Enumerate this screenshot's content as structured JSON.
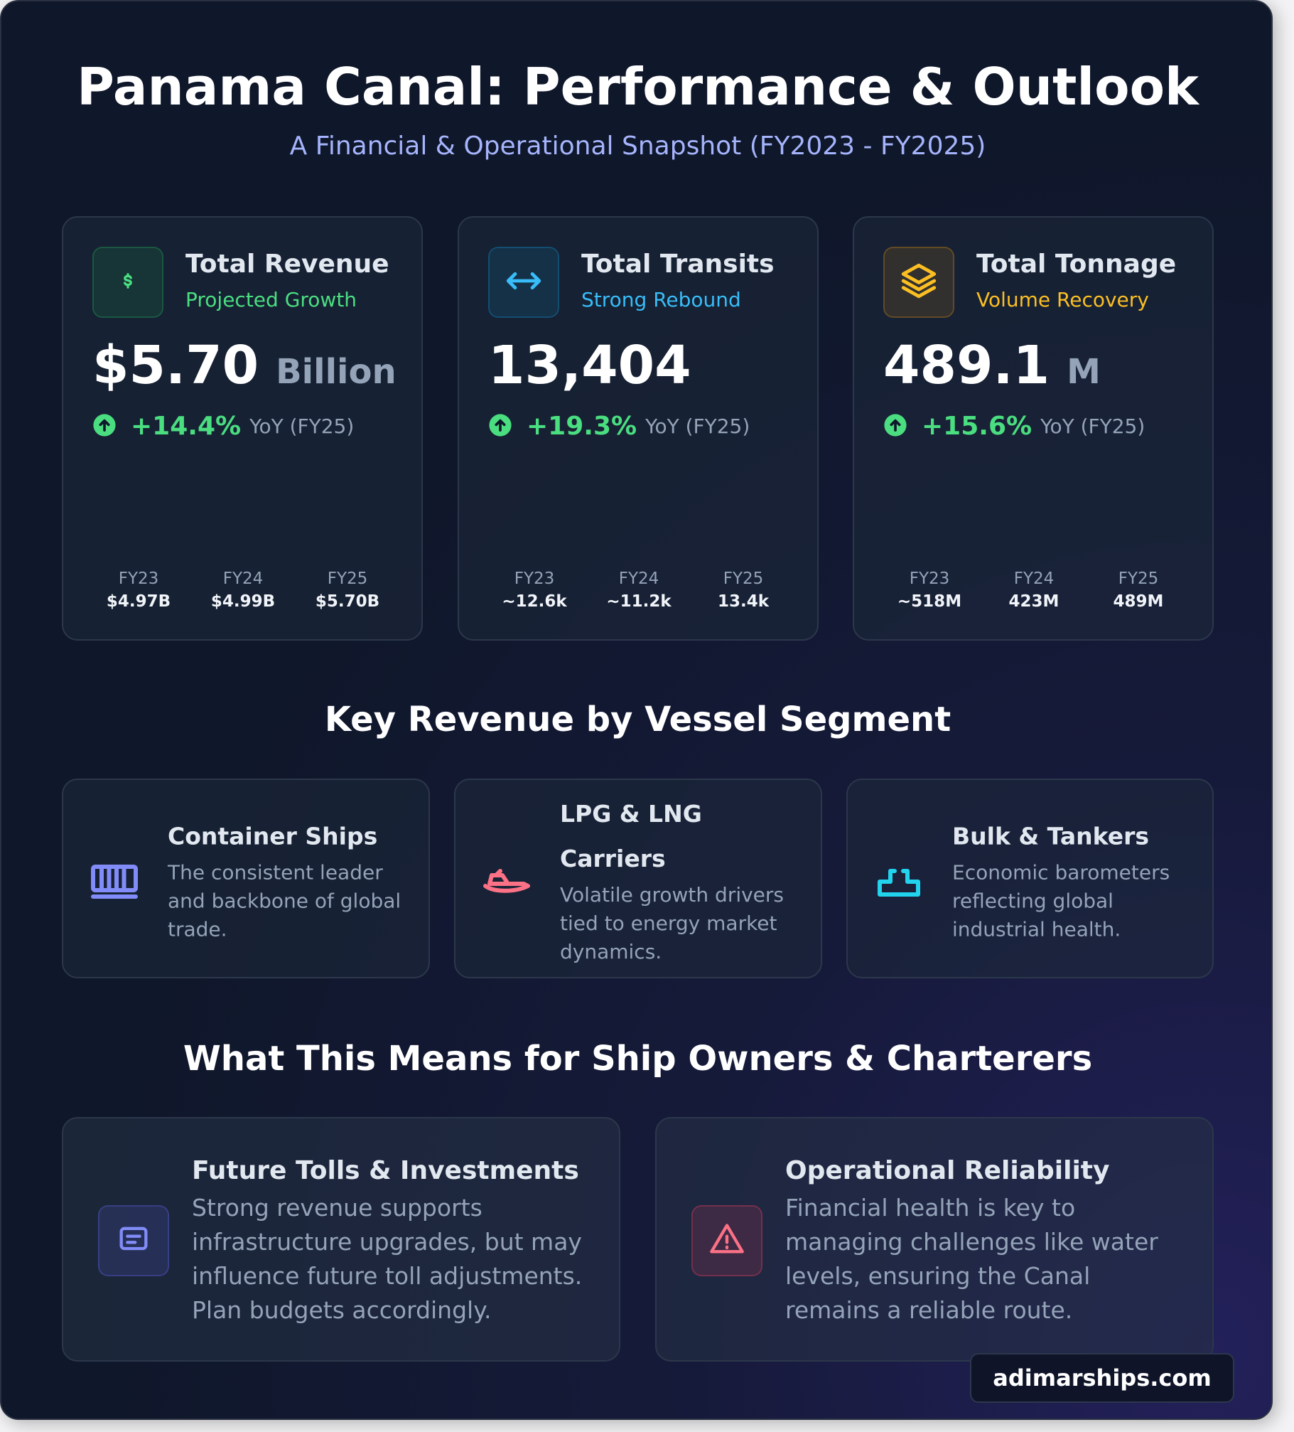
{
  "header": {
    "title": "Panama Canal: Performance & Outlook",
    "subtitle": "A Financial & Operational Snapshot (FY2023 - FY2025)"
  },
  "kpis": [
    {
      "title": "Total Revenue",
      "subtitle": "Projected Growth",
      "value": "$5.70",
      "unit": "Billion",
      "change": "+14.4%",
      "change_label": "YoY (FY25)",
      "years": [
        {
          "label": "FY23",
          "value": "$4.97B"
        },
        {
          "label": "FY24",
          "value": "$4.99B"
        },
        {
          "label": "FY25",
          "value": "$5.70B"
        }
      ]
    },
    {
      "title": "Total Transits",
      "subtitle": "Strong Rebound",
      "value": "13,404",
      "change": "+19.3%",
      "change_label": "YoY (FY25)",
      "years": [
        {
          "label": "FY23",
          "value": "~12.6k"
        },
        {
          "label": "FY24",
          "value": "~11.2k"
        },
        {
          "label": "FY25",
          "value": "13.4k"
        }
      ]
    },
    {
      "title": "Total Tonnage",
      "subtitle": "Volume Recovery",
      "value": "489.1",
      "unit": "M",
      "change": "+15.6%",
      "change_label": "YoY (FY25)",
      "years": [
        {
          "label": "FY23",
          "value": "~518M"
        },
        {
          "label": "FY24",
          "value": "423M"
        },
        {
          "label": "FY25",
          "value": "489M"
        }
      ]
    }
  ],
  "segments": {
    "title": "Key Revenue by Vessel Segment",
    "items": [
      {
        "title": "Container Ships",
        "description": "The consistent leader and backbone of global trade."
      },
      {
        "title": "LPG & LNG Carriers",
        "description": "Volatile growth drivers tied to energy market dynamics."
      },
      {
        "title": "Bulk & Tankers",
        "description": "Economic barometers reflecting global industrial health."
      }
    ]
  },
  "implications": {
    "title": "What This Means for Ship Owners & Charterers",
    "items": [
      {
        "title": "Future Tolls & Investments",
        "description": "Strong revenue supports infrastructure upgrades, but may influence future toll adjustments. Plan budgets accordingly."
      },
      {
        "title": "Operational Reliability",
        "description": "Financial health is key to managing challenges like water levels, ensuring the Canal remains a reliable route."
      }
    ]
  },
  "footer": {
    "brand": "adimarships.com"
  }
}
